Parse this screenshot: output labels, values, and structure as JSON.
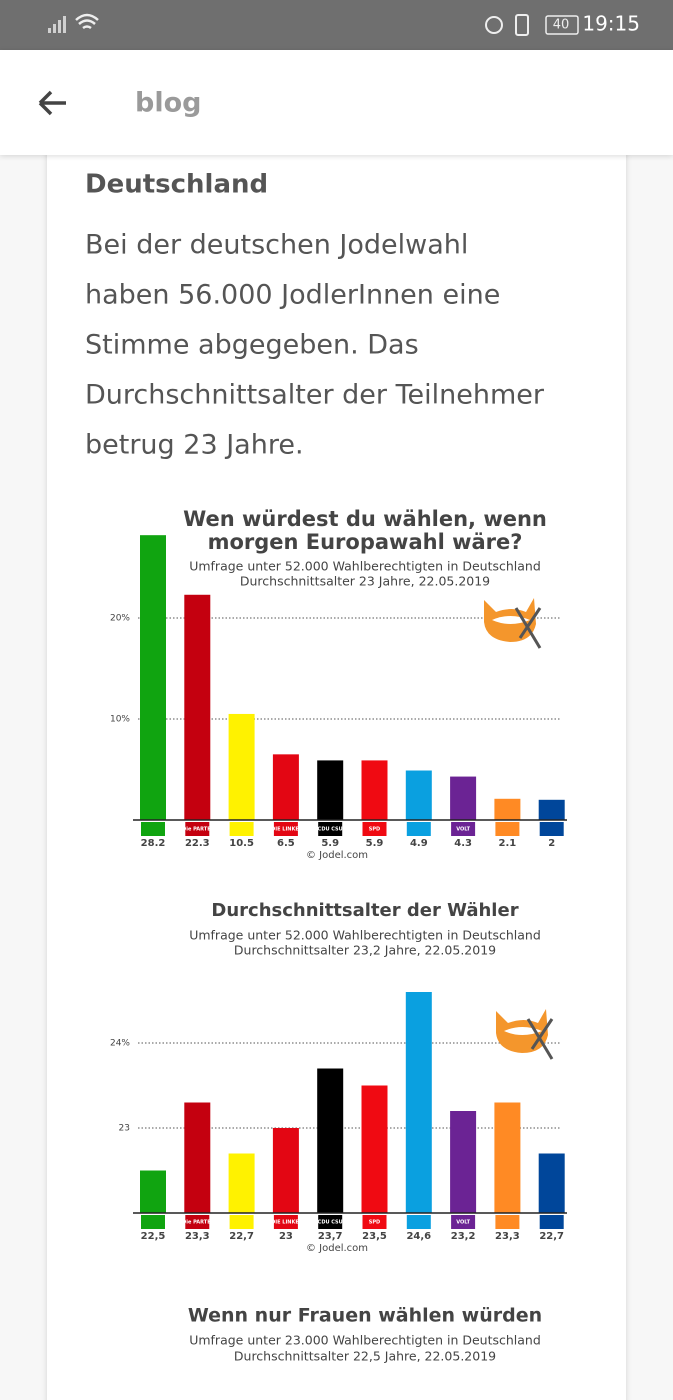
{
  "status_bar": {
    "battery": "40",
    "time": "19:15"
  },
  "app_bar": {
    "title": "blog"
  },
  "article": {
    "heading": "Deutschland",
    "paragraph": [
      "Bei der deutschen Jodelwahl",
      "haben 56.000 JodlerInnen eine",
      "Stimme abgegeben. Das",
      "Durchschnittsalter der Teilnehmer",
      "betrug 23 Jahre."
    ]
  },
  "chart_data": [
    {
      "type": "bar",
      "title": [
        "Wen würdest du wählen, wenn",
        "morgen Europawahl wäre?"
      ],
      "subtitle": [
        "Umfrage unter 52.000 Wahlberechtigten in Deutschland",
        "Durchschnittsalter 23 Jahre, 22.05.2019"
      ],
      "categories": [
        null,
        "Die PARTEI",
        null,
        "DIE LINKE.",
        "CDU CSU",
        "SPD",
        null,
        "VOLT",
        null,
        null
      ],
      "values": [
        28.2,
        22.3,
        10.5,
        6.5,
        5.9,
        5.9,
        4.9,
        4.3,
        2.1,
        2.0
      ],
      "colors": [
        "#10a410",
        "#c4000f",
        "#fff200",
        "#e30613",
        "#000000",
        "#f00a12",
        "#0aa0e0",
        "#6b2394",
        "#ff8a24",
        "#00469a"
      ],
      "ylim": [
        0,
        30
      ],
      "yticks": [
        {
          "value": 10,
          "label": "10%"
        },
        {
          "value": 20,
          "label": "20%"
        }
      ],
      "grid": true,
      "source": "© Jodel.com"
    },
    {
      "type": "bar",
      "title": [
        "Durchschnittsalter der Wähler"
      ],
      "subtitle": [
        "Umfrage unter 52.000 Wahlberechtigten in Deutschland",
        "Durchschnittsalter 23,2 Jahre, 22.05.2019"
      ],
      "categories": [
        null,
        "Die PARTEI",
        null,
        "DIE LINKE.",
        "CDU CSU",
        "SPD",
        null,
        "VOLT",
        null,
        null
      ],
      "values": [
        22.5,
        23.3,
        22.7,
        23,
        23.7,
        23.5,
        24.6,
        23.2,
        23.3,
        22.7
      ],
      "value_labels": [
        "22,5",
        "23,3",
        "22,7",
        "23",
        "23,7",
        "23,5",
        "24,6",
        "23,2",
        "23,3",
        "22,7"
      ],
      "colors": [
        "#10a410",
        "#c4000f",
        "#fff200",
        "#e30613",
        "#000000",
        "#f00a12",
        "#0aa0e0",
        "#6b2394",
        "#ff8a24",
        "#00469a"
      ],
      "ylim": [
        22,
        24.8
      ],
      "yticks": [
        23,
        {
          "value": 24,
          "label": "24%"
        }
      ],
      "grid": true,
      "source": "© Jodel.com"
    },
    {
      "type": "bar",
      "title": [
        "Wenn nur Frauen wählen würden"
      ],
      "subtitle": [
        "Umfrage unter 23.000 Wahlberechtigten in Deutschland",
        "Durchschnittsalter 22,5 Jahre, 22.05.2019"
      ]
    }
  ]
}
